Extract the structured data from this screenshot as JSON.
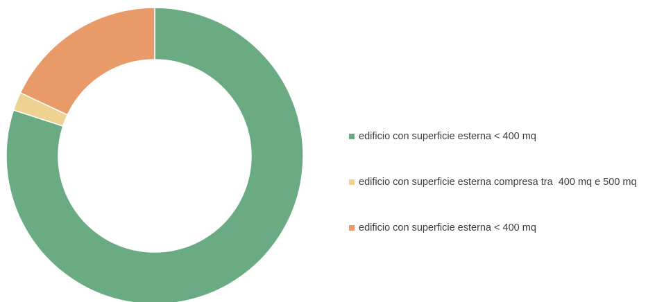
{
  "chart_data": {
    "type": "pie",
    "donut": true,
    "categories": [
      "edificio con superficie esterna < 400 mq",
      "edificio con superficie esterna compresa tra  400 mq e 500 mq",
      "edificio con superficie esterna < 400 mq"
    ],
    "values": [
      80,
      2,
      18
    ],
    "colors": [
      "#6aab83",
      "#eed292",
      "#e89b69"
    ],
    "legend_position": "right",
    "title": ""
  }
}
